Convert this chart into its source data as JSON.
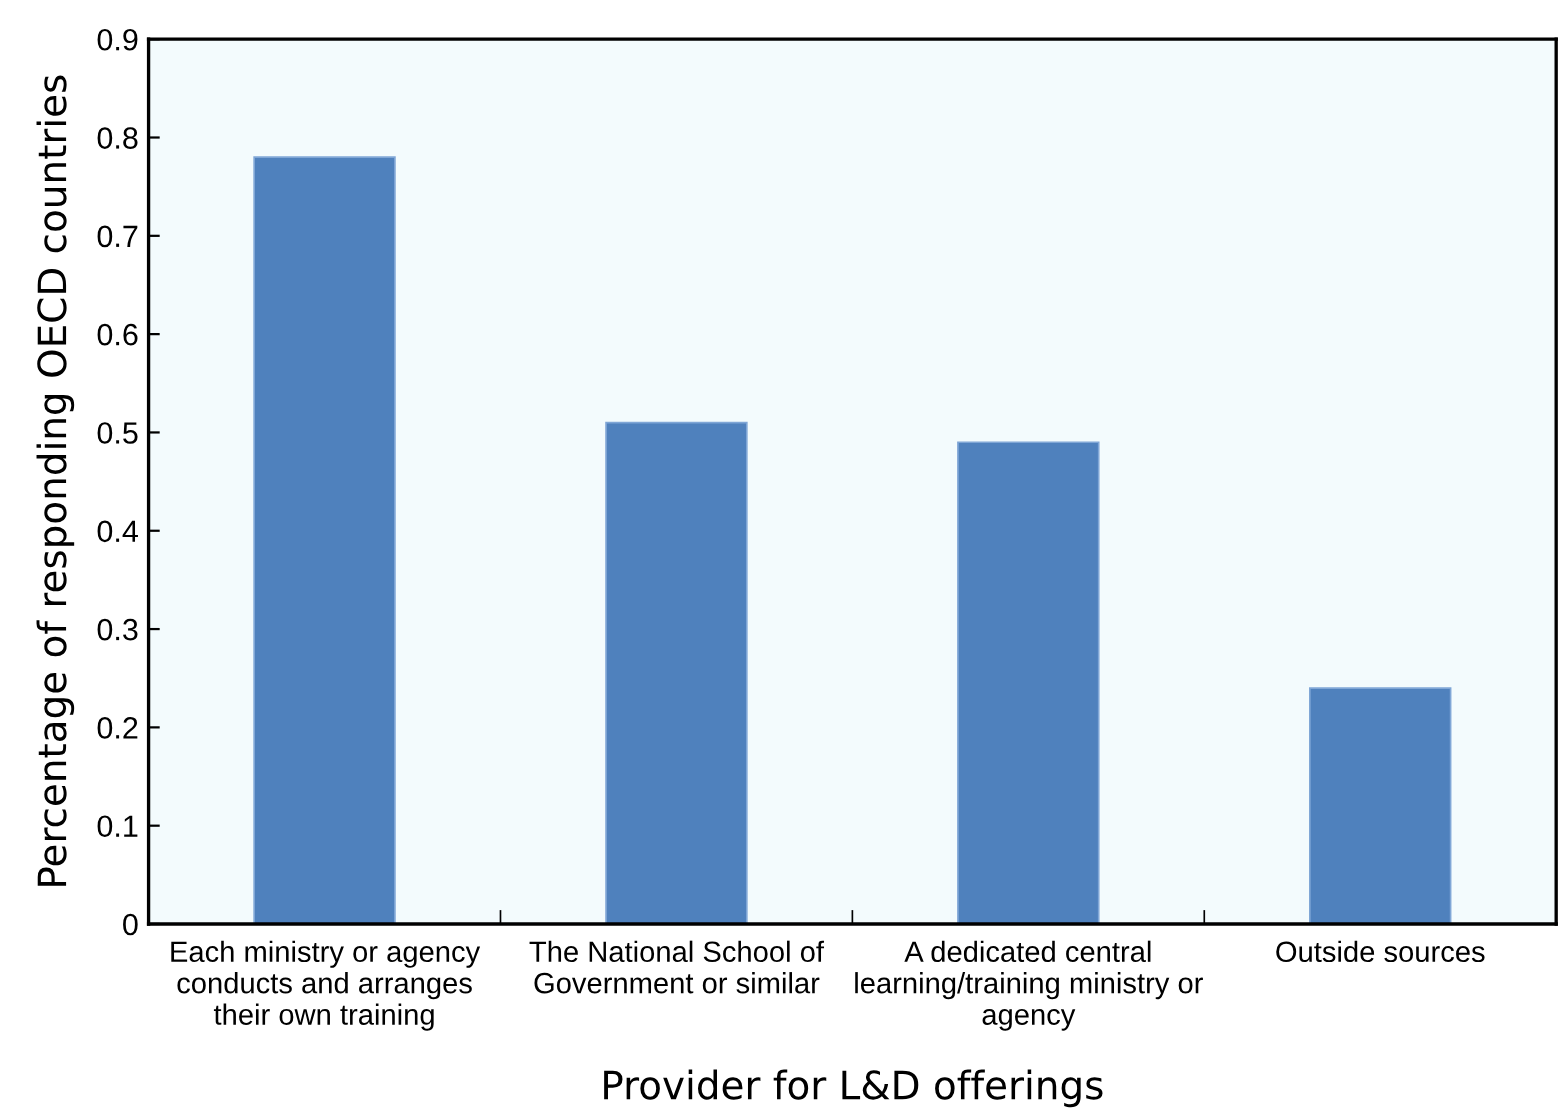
{
  "chart_data": {
    "type": "bar",
    "xlabel": "Provider for L&D offerings",
    "ylabel": "Percentage of responding OECD countries",
    "categories": [
      "Each ministry or agency\nconducts and arranges\ntheir own training",
      "The National School of\nGovernment or similar",
      "A dedicated central\nlearning/training ministry or\nagency",
      "Outside sources"
    ],
    "values": [
      0.78,
      0.51,
      0.49,
      0.24
    ],
    "color": "#4f81bd",
    "ylim": [
      0,
      0.9
    ],
    "yticks": [
      0,
      0.1,
      0.2,
      0.3,
      0.4,
      0.5,
      0.6,
      0.7,
      0.8,
      0.9
    ],
    "grid": false,
    "legend": false
  }
}
